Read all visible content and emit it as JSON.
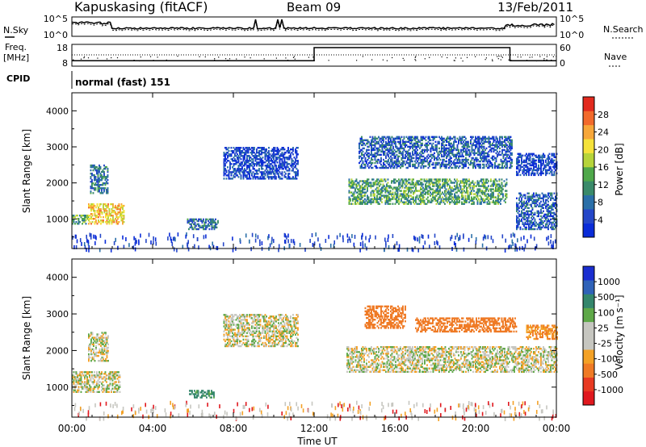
{
  "header": {
    "station": "Kapuskasing (fitACF)",
    "beam": "Beam 09",
    "date": "13/Feb/2011"
  },
  "noise_panel": {
    "left_label": "N.Sky",
    "right_label": "N.Search",
    "left_ticks": [
      "10^5",
      "10^0"
    ],
    "right_ticks": [
      "10^5",
      "10^0"
    ]
  },
  "freq_panel": {
    "left_label_1": "Freq.",
    "left_label_2": "[MHz]",
    "right_label": "Nave",
    "left_ticks": [
      "18",
      "8"
    ],
    "right_ticks": [
      "60",
      "0"
    ]
  },
  "cpid": {
    "label": "CPID",
    "value": "normal (fast) 151"
  },
  "axes": {
    "ylabel": "Slant Range [km]",
    "yticks": [
      "4000",
      "3000",
      "2000",
      "1000"
    ],
    "xticks": [
      "00:00",
      "04:00",
      "08:00",
      "12:00",
      "16:00",
      "20:00",
      "00:00"
    ],
    "xlabel": "Time UT"
  },
  "colorbars": {
    "power": {
      "label": "Power [dB]",
      "ticks": [
        "28",
        "24",
        "20",
        "16",
        "12",
        "8",
        "4"
      ],
      "colors": [
        "#0a2cd8",
        "#2446c8",
        "#2a6fa8",
        "#3a8a6a",
        "#4fa84a",
        "#b6d43a",
        "#f5e23a",
        "#f7a73a",
        "#f26a2c",
        "#e22a1e"
      ]
    },
    "velocity": {
      "label": "Velocity [m s⁻¹]",
      "ticks": [
        "1000",
        "500",
        "100",
        "25",
        "-25",
        "-100",
        "-500",
        "-1000"
      ],
      "colors": [
        "#1a2ed0",
        "#2f62b8",
        "#34866c",
        "#5ea848",
        "#c6c6c0",
        "#c6c6c0",
        "#f3a126",
        "#ef7a25",
        "#e83a22",
        "#e0181e"
      ]
    }
  },
  "chart_data": {
    "type": "heatmap",
    "title": "Kapuskasing (fitACF) Beam 09 13/Feb/2011",
    "xlabel": "Time UT",
    "ylabel": "Slant Range [km]",
    "xlim": [
      0,
      24
    ],
    "ylim": [
      180,
      4500
    ],
    "panels": [
      {
        "name": "Power [dB]",
        "echo_regions": [
          {
            "t_start": 0.0,
            "t_end": 0.8,
            "range_min": 850,
            "range_max": 1100,
            "power_db": 14
          },
          {
            "t_start": 0.8,
            "t_end": 2.6,
            "range_min": 850,
            "range_max": 1400,
            "power_db": 22
          },
          {
            "t_start": 0.9,
            "t_end": 1.8,
            "range_min": 1700,
            "range_max": 2500,
            "power_db": 10
          },
          {
            "t_start": 5.7,
            "t_end": 7.2,
            "range_min": 700,
            "range_max": 1000,
            "power_db": 10
          },
          {
            "t_start": 7.5,
            "t_end": 11.2,
            "range_min": 2100,
            "range_max": 3000,
            "power_db": 6
          },
          {
            "t_start": 13.7,
            "t_end": 21.5,
            "range_min": 1400,
            "range_max": 2100,
            "power_db": 14
          },
          {
            "t_start": 14.2,
            "t_end": 21.8,
            "range_min": 2400,
            "range_max": 3300,
            "power_db": 8
          },
          {
            "t_start": 22.0,
            "t_end": 24.0,
            "range_min": 700,
            "range_max": 1700,
            "power_db": 8
          },
          {
            "t_start": 22.0,
            "t_end": 24.0,
            "range_min": 2200,
            "range_max": 2800,
            "power_db": 6
          }
        ]
      },
      {
        "name": "Velocity [m s⁻¹]",
        "echo_regions": [
          {
            "t_start": 0.0,
            "t_end": 2.4,
            "range_min": 850,
            "range_max": 1400,
            "velocity": 0
          },
          {
            "t_start": 0.8,
            "t_end": 1.8,
            "range_min": 1700,
            "range_max": 2500,
            "velocity": 0
          },
          {
            "t_start": 5.8,
            "t_end": 7.0,
            "range_min": 700,
            "range_max": 900,
            "velocity": 100
          },
          {
            "t_start": 7.5,
            "t_end": 11.2,
            "range_min": 2100,
            "range_max": 3000,
            "velocity": 0
          },
          {
            "t_start": 13.6,
            "t_end": 24.0,
            "range_min": 1400,
            "range_max": 2100,
            "velocity": 0
          },
          {
            "t_start": 14.5,
            "t_end": 16.5,
            "range_min": 2600,
            "range_max": 3200,
            "velocity": -300
          },
          {
            "t_start": 17.0,
            "t_end": 22.0,
            "range_min": 2500,
            "range_max": 2900,
            "velocity": -200
          },
          {
            "t_start": 22.5,
            "t_end": 24.0,
            "range_min": 2300,
            "range_max": 2700,
            "velocity": -100
          }
        ]
      }
    ],
    "noise": {
      "level_high": "10^5",
      "level_low": "10^0"
    },
    "frequency_mhz": [
      {
        "t_start": 0.0,
        "t_end": 12.0,
        "value": 10.5
      },
      {
        "t_start": 12.0,
        "t_end": 21.7,
        "value": 16.5
      },
      {
        "t_start": 21.7,
        "t_end": 24.0,
        "value": 10.5
      }
    ]
  }
}
